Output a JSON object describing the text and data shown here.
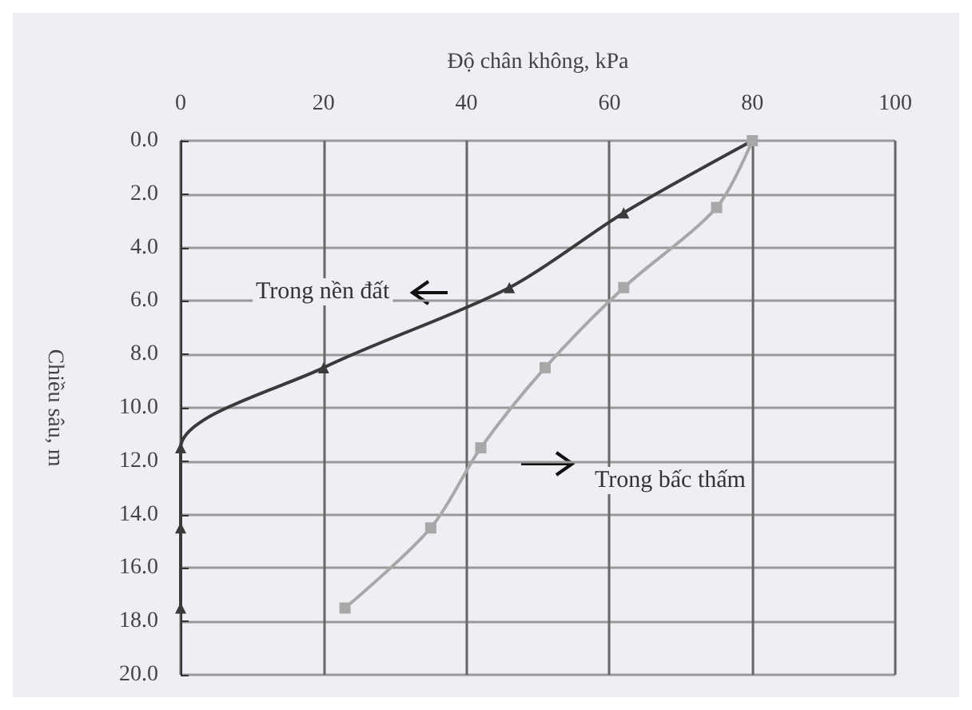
{
  "chart_data": {
    "type": "line",
    "xlabel": "Độ chân không, kPa",
    "ylabel": "Chiều sâu, m",
    "xlim": [
      0,
      100
    ],
    "xticks": [
      0,
      20,
      40,
      60,
      80,
      100
    ],
    "ylim": [
      20,
      0
    ],
    "yticks": [
      {
        "value": 0,
        "label": "0.0"
      },
      {
        "value": 2,
        "label": "2.0"
      },
      {
        "value": 4,
        "label": "4.0"
      },
      {
        "value": 6,
        "label": "6.0"
      },
      {
        "value": 8,
        "label": "8.0"
      },
      {
        "value": 10,
        "label": "10.0"
      },
      {
        "value": 12,
        "label": "12.0"
      },
      {
        "value": 14,
        "label": "14.0"
      },
      {
        "value": 16,
        "label": "16.0"
      },
      {
        "value": 18,
        "label": "18.0"
      },
      {
        "value": 20,
        "label": "20.0"
      }
    ],
    "grid": true,
    "legend": false,
    "series": [
      {
        "name": "Trong nền đất",
        "color": "#3a3a3a",
        "marker": "triangle",
        "x": [
          80,
          62,
          46,
          20,
          0,
          0,
          0
        ],
        "values": [
          0,
          2.7,
          5.5,
          8.5,
          11.5,
          14.5,
          17.5
        ]
      },
      {
        "name": "Trong bấc thấm",
        "color": "#a8a8a8",
        "marker": "square",
        "x": [
          80,
          75,
          62,
          51,
          42,
          35,
          23
        ],
        "values": [
          0,
          2.5,
          5.5,
          8.5,
          11.5,
          14.5,
          17.5
        ]
      }
    ]
  }
}
